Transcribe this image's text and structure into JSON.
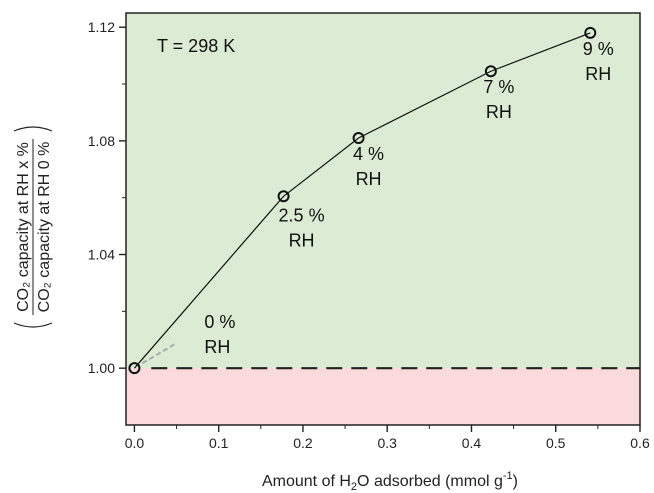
{
  "chart_data": {
    "type": "line",
    "annotation_temp": "T = 298 K",
    "xlabel": {
      "prefix": "Amount of H",
      "sub": "2",
      "mid": "O adsorbed (mmol g",
      "sup": "-1",
      "suffix": ")"
    },
    "ylabel": {
      "numerator": "CO₂ capacity at RH x %",
      "denominator": "CO₂ capacity at RH 0 %"
    },
    "xlim": [
      -0.01,
      0.6
    ],
    "ylim": [
      0.98,
      1.125
    ],
    "xticks": [
      "0.0",
      "0.1",
      "0.2",
      "0.3",
      "0.4",
      "0.5",
      "0.6"
    ],
    "yticks": [
      "1.00",
      "1.04",
      "1.08",
      "1.12"
    ],
    "reference_line": 1.0,
    "regions": {
      "above_color": "#dcebd4",
      "below_color": "#fadadb"
    },
    "series": [
      {
        "x": [
          0.0,
          0.177,
          0.266,
          0.423,
          0.541
        ],
        "y": [
          1.0,
          1.0605,
          1.081,
          1.1045,
          1.118
        ],
        "point_labels": [
          [
            "0 %",
            "RH"
          ],
          [
            "2.5 %",
            "RH"
          ],
          [
            "4 %",
            "RH"
          ],
          [
            "7 %",
            "RH"
          ],
          [
            "9 %",
            "RH"
          ]
        ]
      }
    ]
  }
}
